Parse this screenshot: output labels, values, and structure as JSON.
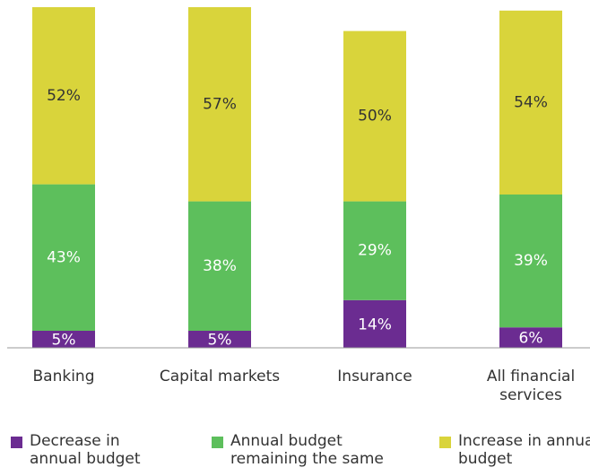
{
  "chart_data": {
    "type": "stacked_bar",
    "categories": [
      "Banking",
      "Capital markets",
      "Insurance",
      "All financial services"
    ],
    "series": [
      {
        "name": "Decrease in annual budget",
        "color": "#6b2c91",
        "values": [
          5,
          5,
          14,
          6
        ],
        "value_labels": [
          "5%",
          "5%",
          "14%",
          "6%"
        ]
      },
      {
        "name": "Annual budget remaining the same",
        "color": "#5dbf5c",
        "values": [
          43,
          38,
          29,
          39
        ],
        "value_labels": [
          "43%",
          "38%",
          "29%",
          "39%"
        ]
      },
      {
        "name": "Increase in annual budget",
        "color": "#d9d43b",
        "values": [
          52,
          57,
          50,
          54
        ],
        "value_labels": [
          "52%",
          "57%",
          "50%",
          "54%"
        ]
      }
    ],
    "ylim": [
      0,
      100
    ]
  }
}
